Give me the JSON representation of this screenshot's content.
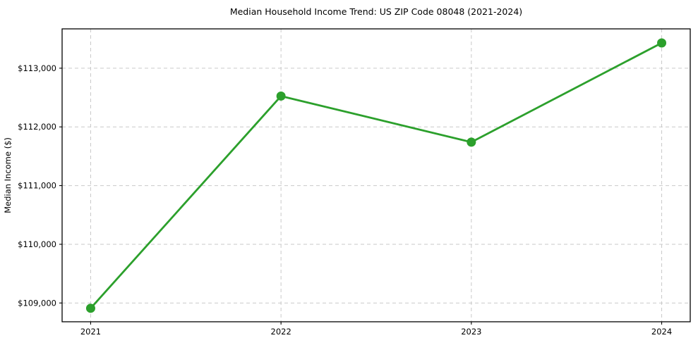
{
  "chart_data": {
    "type": "line",
    "title": "Median Household Income Trend: US ZIP Code 08048 (2021-2024)",
    "xlabel": "",
    "ylabel": "Median Income ($)",
    "x": [
      2021,
      2022,
      2023,
      2024
    ],
    "series": [
      {
        "name": "Median Household Income",
        "values": [
          108910,
          112525,
          111740,
          113430
        ]
      }
    ],
    "x_tick_labels": [
      "2021",
      "2022",
      "2023",
      "2024"
    ],
    "y_ticks": [
      109000,
      110000,
      111000,
      112000,
      113000
    ],
    "y_tick_labels": [
      "$109,000",
      "$110,000",
      "$111,000",
      "$112,000",
      "$113,000"
    ],
    "xlim": [
      2020.85,
      2024.15
    ],
    "ylim": [
      108680,
      113670
    ],
    "grid": true,
    "grid_style": "dashed",
    "legend_position": "none",
    "colors": {
      "line": "#2ca02c",
      "marker": "#2ca02c",
      "grid": "#c9c9c9",
      "axis": "#000000",
      "background": "#ffffff",
      "text": "#000000"
    }
  }
}
